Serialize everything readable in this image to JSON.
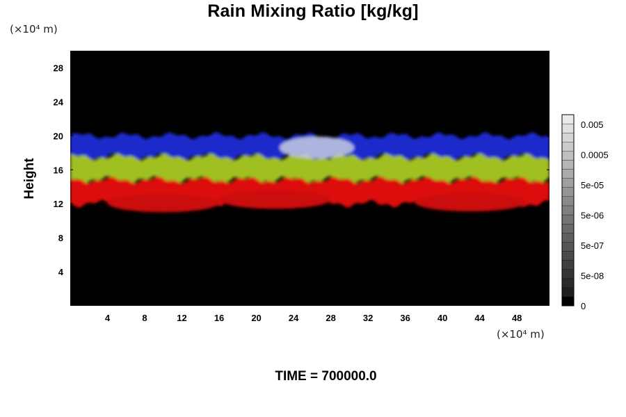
{
  "chart_data": {
    "type": "heatmap",
    "title": "Rain Mixing Ratio [kg/kg]",
    "ylabel": "Height",
    "y_unit_label": "(×10⁴ m)",
    "x_unit_label": "(×10⁴ m)",
    "footer": "TIME = 700000.0",
    "xlim": [
      0,
      51.5
    ],
    "ylim": [
      0,
      30
    ],
    "x_ticks": [
      4,
      8,
      12,
      16,
      20,
      24,
      28,
      32,
      36,
      40,
      44,
      48
    ],
    "y_ticks": [
      4,
      8,
      12,
      16,
      20,
      24,
      28
    ],
    "colorbar": {
      "tick_labels": [
        "0.005",
        "0.0005",
        "5e-05",
        "5e-06",
        "5e-07",
        "5e-08",
        "0"
      ]
    },
    "bands": [
      {
        "color": "#1a2acc",
        "y_range": [
          17.5,
          20.0
        ]
      },
      {
        "color": "#a0c020",
        "y_range": [
          14.8,
          17.5
        ]
      },
      {
        "color": "#dd1010",
        "y_range": [
          12.0,
          14.8
        ]
      }
    ],
    "background_color": "#000000"
  }
}
